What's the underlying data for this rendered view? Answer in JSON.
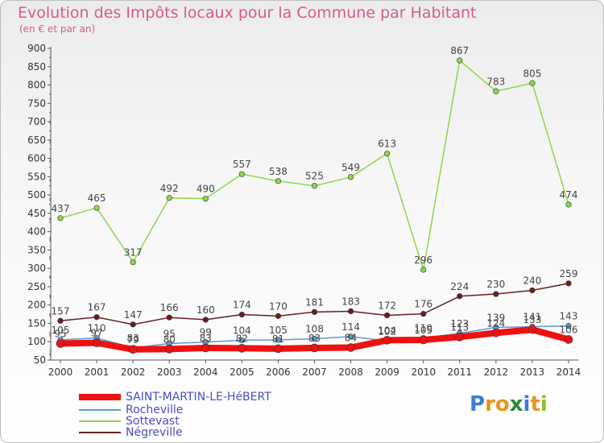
{
  "header": {
    "title": "Evolution des Impôts locaux pour la Commune par Habitant",
    "subtitle": "(en € et par an)"
  },
  "logo": {
    "text": "Proxiti",
    "letters": [
      "P",
      "r",
      "o",
      "x",
      "i",
      "t",
      "i"
    ],
    "colors": [
      "#3a7fd5",
      "#e8951c",
      "#e8951c",
      "#2a8a3a",
      "#3a7fd5",
      "#e8951c",
      "#8fbf2f"
    ]
  },
  "chart_data": {
    "type": "line",
    "title": "Evolution des Impôts locaux pour la Commune par Habitant",
    "subtitle": "(en € et par an)",
    "x": [
      "2000",
      "2001",
      "2002",
      "2003",
      "2004",
      "2005",
      "2006",
      "2007",
      "2008",
      "2009",
      "2010",
      "2011",
      "2012",
      "2013",
      "2014"
    ],
    "ylim": [
      50,
      900
    ],
    "yticks": [
      50,
      100,
      150,
      200,
      250,
      300,
      350,
      400,
      450,
      500,
      550,
      600,
      650,
      700,
      750,
      800,
      850,
      900
    ],
    "grid": false,
    "legend_position": "bottom-left",
    "series": [
      {
        "name": "SAINT-MARTIN-LE-HéBERT",
        "color": "#ee1111",
        "width": 8,
        "values": [
          95,
          97,
          79,
          80,
          83,
          82,
          81,
          83,
          84,
          104,
          105,
          113,
          124,
          133,
          106
        ]
      },
      {
        "name": "Rocheville",
        "color": "#5b9bd5",
        "width": 1.5,
        "values": [
          105,
          110,
          83,
          95,
          99,
          104,
          105,
          108,
          114,
          102,
          110,
          123,
          139,
          141,
          143
        ]
      },
      {
        "name": "Sottevast",
        "color": "#8cd64a",
        "width": 1.5,
        "values": [
          437,
          465,
          317,
          492,
          490,
          557,
          538,
          525,
          549,
          613,
          296,
          867,
          783,
          805,
          474
        ]
      },
      {
        "name": "Négreville",
        "color": "#6a1e22",
        "width": 1.5,
        "values": [
          157,
          167,
          147,
          166,
          160,
          174,
          170,
          181,
          183,
          172,
          176,
          224,
          230,
          240,
          259
        ]
      }
    ]
  }
}
